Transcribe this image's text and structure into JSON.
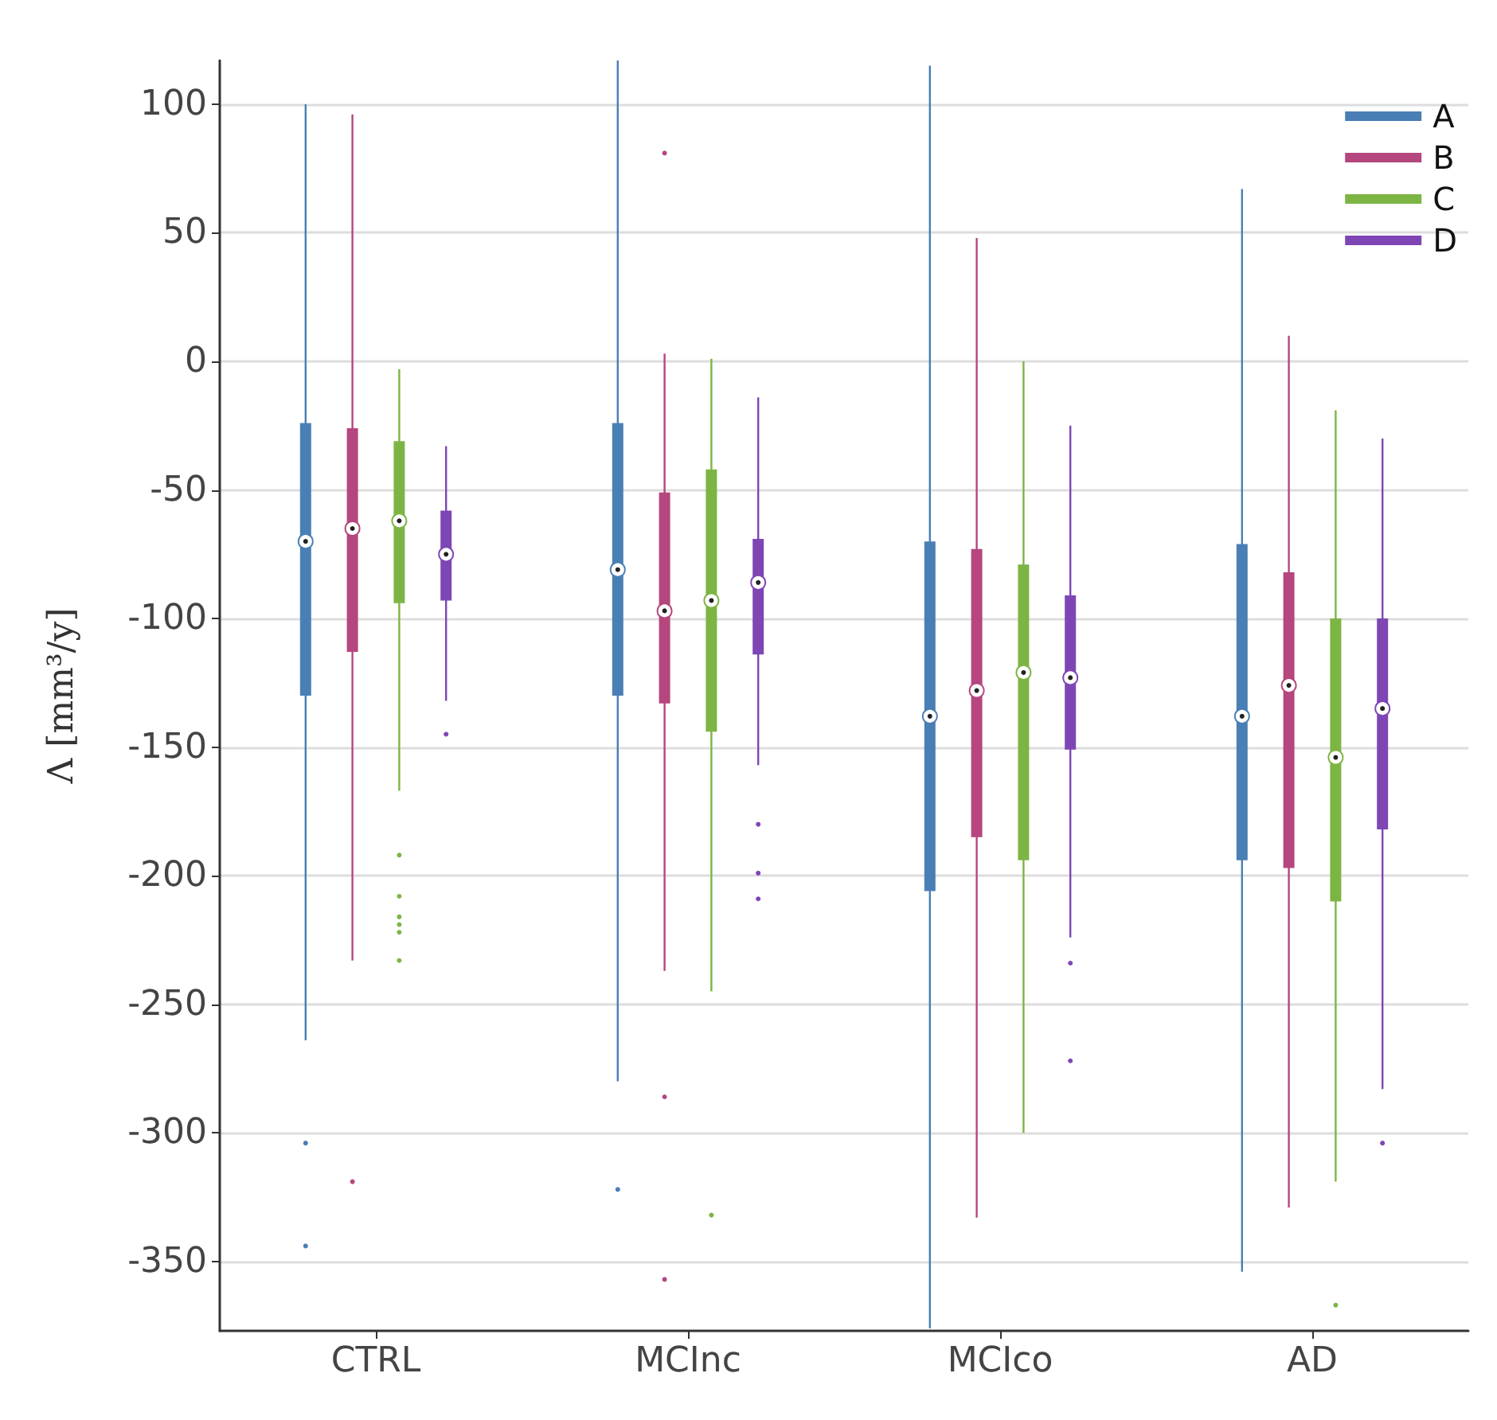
{
  "chart_data": {
    "type": "box",
    "ylabel": "Λ [mm³/y]",
    "categories": [
      "CTRL",
      "MCInc",
      "MCIco",
      "AD"
    ],
    "ylim": [
      -377,
      117
    ],
    "yticks": [
      100,
      50,
      0,
      -50,
      -100,
      -150,
      -200,
      -250,
      -300,
      -350
    ],
    "grid": "y",
    "legend": "top right",
    "series": [
      {
        "name": "A",
        "color": "#4a7fb5",
        "boxes": [
          {
            "low": -264,
            "q1": -130,
            "median": -70,
            "q3": -24,
            "high": 100,
            "outliers": [
              -304,
              -344
            ]
          },
          {
            "low": -280,
            "q1": -130,
            "median": -81,
            "q3": -24,
            "high": 117,
            "outliers": [
              -322
            ]
          },
          {
            "low": -376,
            "q1": -206,
            "median": -138,
            "q3": -70,
            "high": 115
          },
          {
            "low": -354,
            "q1": -194,
            "median": -138,
            "q3": -71,
            "high": 67
          }
        ]
      },
      {
        "name": "B",
        "color": "#b5467e",
        "boxes": [
          {
            "low": -233,
            "q1": -113,
            "median": -65,
            "q3": -26,
            "high": 96,
            "outliers": [
              -319
            ]
          },
          {
            "low": -237,
            "q1": -133,
            "median": -97,
            "q3": -51,
            "high": 3,
            "outliers": [
              81,
              -286,
              -357
            ]
          },
          {
            "low": -333,
            "q1": -185,
            "median": -128,
            "q3": -73,
            "high": 48
          },
          {
            "low": -329,
            "q1": -197,
            "median": -126,
            "q3": -82,
            "high": 10
          }
        ]
      },
      {
        "name": "C",
        "color": "#7db544",
        "boxes": [
          {
            "low": -167,
            "q1": -94,
            "median": -62,
            "q3": -31,
            "high": -3,
            "outliers": [
              -192,
              -208,
              -216,
              -219,
              -222,
              -233
            ]
          },
          {
            "low": -245,
            "q1": -144,
            "median": -93,
            "q3": -42,
            "high": 1,
            "outliers": [
              -332
            ]
          },
          {
            "low": -300,
            "q1": -194,
            "median": -121,
            "q3": -79,
            "high": 0
          },
          {
            "low": -319,
            "q1": -210,
            "median": -154,
            "q3": -100,
            "high": -19,
            "outliers": [
              -367
            ]
          }
        ]
      },
      {
        "name": "D",
        "color": "#7e46b5",
        "boxes": [
          {
            "low": -132,
            "q1": -93,
            "median": -75,
            "q3": -58,
            "high": -33,
            "outliers": [
              -145
            ]
          },
          {
            "low": -157,
            "q1": -114,
            "median": -86,
            "q3": -69,
            "high": -14,
            "outliers": [
              -180,
              -199,
              -209
            ]
          },
          {
            "low": -224,
            "q1": -151,
            "median": -123,
            "q3": -91,
            "high": -25,
            "outliers": [
              -234,
              -272
            ]
          },
          {
            "low": -283,
            "q1": -182,
            "median": -135,
            "q3": -100,
            "high": -30,
            "outliers": [
              -304
            ]
          }
        ]
      }
    ]
  }
}
